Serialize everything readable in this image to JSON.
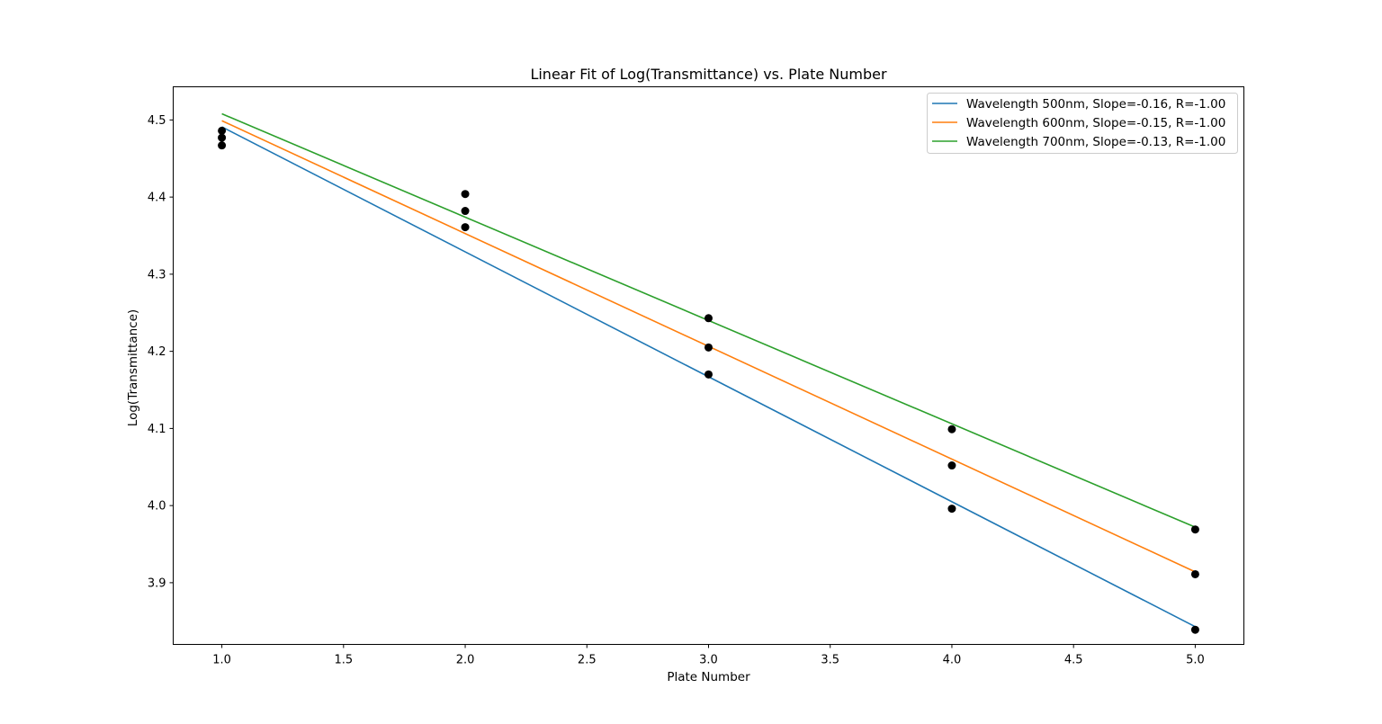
{
  "chart_data": {
    "type": "scatter",
    "title": "Linear Fit of Log(Transmittance) vs. Plate Number",
    "xlabel": "Plate Number",
    "ylabel": "Log(Transmittance)",
    "xlim": [
      0.8,
      5.2
    ],
    "ylim": [
      3.82,
      4.543
    ],
    "x_ticks": [
      1.0,
      1.5,
      2.0,
      2.5,
      3.0,
      3.5,
      4.0,
      4.5,
      5.0
    ],
    "x_tick_labels": [
      "1.0",
      "1.5",
      "2.0",
      "2.5",
      "3.0",
      "3.5",
      "4.0",
      "4.5",
      "5.0"
    ],
    "y_ticks": [
      3.9,
      4.0,
      4.1,
      4.2,
      4.3,
      4.4,
      4.5
    ],
    "y_tick_labels": [
      "3.9",
      "4.0",
      "4.1",
      "4.2",
      "4.3",
      "4.4",
      "4.5"
    ],
    "grid": false,
    "legend_position": "top-right",
    "points": {
      "color": "#000000",
      "x": [
        1,
        1,
        1,
        2,
        2,
        2,
        3,
        3,
        3,
        4,
        4,
        4,
        5,
        5,
        5
      ],
      "y": [
        4.467,
        4.477,
        4.486,
        4.361,
        4.382,
        4.404,
        4.17,
        4.205,
        4.243,
        3.996,
        4.052,
        4.099,
        3.839,
        3.911,
        3.969
      ]
    },
    "series": [
      {
        "name": "Wavelength 500nm, Slope=-0.16, R=-1.00",
        "color": "#1f77b4",
        "x": [
          1,
          5
        ],
        "y": [
          4.491,
          3.843
        ]
      },
      {
        "name": "Wavelength 600nm, Slope=-0.15, R=-1.00",
        "color": "#ff7f0e",
        "x": [
          1,
          5
        ],
        "y": [
          4.499,
          3.914
        ]
      },
      {
        "name": "Wavelength 700nm, Slope=-0.13, R=-1.00",
        "color": "#2ca02c",
        "x": [
          1,
          5
        ],
        "y": [
          4.508,
          3.972
        ]
      }
    ]
  }
}
